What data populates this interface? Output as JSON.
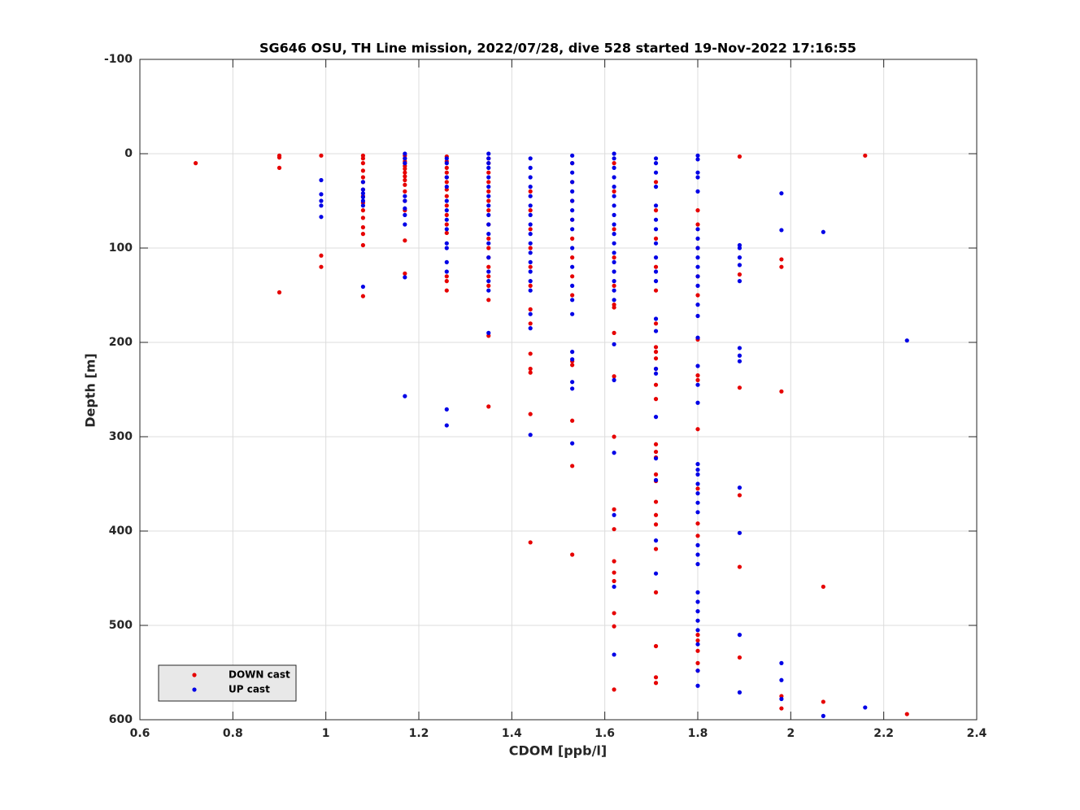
{
  "chart_data": {
    "type": "scatter",
    "title": "SG646 OSU, TH Line mission, 2022/07/28, dive 528 started 19-Nov-2022 17:16:55",
    "x_label": "CDOM [ppb/l]",
    "y_label": "Depth [m]",
    "xlim": [
      0.6,
      2.4
    ],
    "xticks": [
      0.6,
      0.8,
      1,
      1.2,
      1.4,
      1.6,
      1.8,
      2,
      2.2,
      2.4
    ],
    "ylim": [
      -100,
      600
    ],
    "yticks": [
      -100,
      0,
      100,
      200,
      300,
      400,
      500,
      600
    ],
    "y_reversed": true,
    "grid": true,
    "legend": "lower left",
    "series": [
      {
        "name": "DOWN cast",
        "color": "#e60000",
        "x": [
          0.72,
          0.9,
          0.9,
          0.9,
          0.9,
          0.99,
          0.99,
          0.99,
          1.08,
          1.08,
          1.08,
          1.08,
          1.08,
          1.08,
          1.08,
          1.08,
          1.08,
          1.08,
          1.08,
          1.08,
          1.08,
          1.08,
          1.08,
          1.17,
          1.17,
          1.17,
          1.17,
          1.17,
          1.17,
          1.17,
          1.17,
          1.17,
          1.17,
          1.17,
          1.17,
          1.17,
          1.17,
          1.17,
          1.26,
          1.26,
          1.26,
          1.26,
          1.26,
          1.26,
          1.26,
          1.26,
          1.26,
          1.26,
          1.26,
          1.26,
          1.26,
          1.26,
          1.26,
          1.35,
          1.35,
          1.35,
          1.35,
          1.35,
          1.35,
          1.35,
          1.35,
          1.35,
          1.35,
          1.35,
          1.35,
          1.35,
          1.35,
          1.35,
          1.35,
          1.35,
          1.44,
          1.44,
          1.44,
          1.44,
          1.44,
          1.44,
          1.44,
          1.44,
          1.44,
          1.44,
          1.44,
          1.44,
          1.44,
          1.53,
          1.53,
          1.53,
          1.53,
          1.53,
          1.53,
          1.53,
          1.53,
          1.53,
          1.53,
          1.53,
          1.53,
          1.53,
          1.62,
          1.62,
          1.62,
          1.62,
          1.62,
          1.62,
          1.62,
          1.62,
          1.62,
          1.62,
          1.62,
          1.62,
          1.62,
          1.62,
          1.62,
          1.62,
          1.62,
          1.62,
          1.71,
          1.71,
          1.71,
          1.71,
          1.71,
          1.71,
          1.71,
          1.71,
          1.71,
          1.71,
          1.71,
          1.71,
          1.71,
          1.71,
          1.71,
          1.71,
          1.71,
          1.71,
          1.71,
          1.71,
          1.71,
          1.71,
          1.71,
          1.71,
          1.71,
          1.8,
          1.8,
          1.8,
          1.8,
          1.8,
          1.8,
          1.8,
          1.8,
          1.8,
          1.8,
          1.8,
          1.8,
          1.8,
          1.8,
          1.8,
          1.8,
          1.8,
          1.89,
          1.89,
          1.89,
          1.89,
          1.89,
          1.89,
          1.98,
          1.98,
          1.98,
          1.98,
          1.98,
          2.07,
          2.07,
          2.16,
          2.25
        ],
        "values": [
          10,
          2,
          4,
          15,
          147,
          2,
          108,
          120,
          2,
          5,
          10,
          18,
          25,
          30,
          38,
          45,
          52,
          60,
          68,
          78,
          85,
          97,
          151,
          2,
          5,
          8,
          10,
          13,
          16,
          20,
          24,
          28,
          33,
          40,
          50,
          60,
          92,
          127,
          3,
          8,
          15,
          20,
          25,
          30,
          38,
          45,
          55,
          65,
          75,
          84,
          130,
          135,
          145,
          5,
          10,
          20,
          30,
          40,
          50,
          60,
          75,
          90,
          100,
          110,
          120,
          130,
          140,
          155,
          193,
          268,
          40,
          60,
          80,
          100,
          120,
          140,
          165,
          180,
          212,
          228,
          232,
          276,
          412,
          10,
          30,
          50,
          70,
          90,
          110,
          130,
          150,
          220,
          224,
          283,
          331,
          425,
          10,
          40,
          80,
          110,
          140,
          160,
          163,
          190,
          236,
          300,
          377,
          398,
          432,
          444,
          453,
          487,
          501,
          568,
          30,
          60,
          90,
          120,
          145,
          180,
          205,
          210,
          217,
          228,
          245,
          260,
          308,
          316,
          322,
          340,
          347,
          369,
          383,
          393,
          419,
          465,
          522,
          555,
          561,
          60,
          75,
          100,
          130,
          150,
          197,
          235,
          240,
          292,
          355,
          392,
          405,
          510,
          516,
          527,
          540,
          548,
          3,
          128,
          248,
          362,
          438,
          534,
          112,
          120,
          252,
          575,
          588,
          459,
          581,
          2,
          594
        ]
      },
      {
        "name": "UP cast",
        "color": "#0000e6",
        "x": [
          0.99,
          0.99,
          0.99,
          0.99,
          0.99,
          1.08,
          1.08,
          1.08,
          1.08,
          1.08,
          1.08,
          1.08,
          1.17,
          1.17,
          1.17,
          1.17,
          1.17,
          1.17,
          1.17,
          1.17,
          1.17,
          1.17,
          1.26,
          1.26,
          1.26,
          1.26,
          1.26,
          1.26,
          1.26,
          1.26,
          1.26,
          1.26,
          1.26,
          1.26,
          1.26,
          1.26,
          1.35,
          1.35,
          1.35,
          1.35,
          1.35,
          1.35,
          1.35,
          1.35,
          1.35,
          1.35,
          1.35,
          1.35,
          1.35,
          1.35,
          1.35,
          1.35,
          1.35,
          1.44,
          1.44,
          1.44,
          1.44,
          1.44,
          1.44,
          1.44,
          1.44,
          1.44,
          1.44,
          1.44,
          1.44,
          1.44,
          1.44,
          1.44,
          1.44,
          1.44,
          1.44,
          1.53,
          1.53,
          1.53,
          1.53,
          1.53,
          1.53,
          1.53,
          1.53,
          1.53,
          1.53,
          1.53,
          1.53,
          1.53,
          1.53,
          1.53,
          1.53,
          1.53,
          1.53,
          1.53,
          1.62,
          1.62,
          1.62,
          1.62,
          1.62,
          1.62,
          1.62,
          1.62,
          1.62,
          1.62,
          1.62,
          1.62,
          1.62,
          1.62,
          1.62,
          1.62,
          1.62,
          1.62,
          1.62,
          1.62,
          1.62,
          1.62,
          1.62,
          1.71,
          1.71,
          1.71,
          1.71,
          1.71,
          1.71,
          1.71,
          1.71,
          1.71,
          1.71,
          1.71,
          1.71,
          1.71,
          1.71,
          1.71,
          1.71,
          1.71,
          1.71,
          1.71,
          1.71,
          1.8,
          1.8,
          1.8,
          1.8,
          1.8,
          1.8,
          1.8,
          1.8,
          1.8,
          1.8,
          1.8,
          1.8,
          1.8,
          1.8,
          1.8,
          1.8,
          1.8,
          1.8,
          1.8,
          1.8,
          1.8,
          1.8,
          1.8,
          1.8,
          1.8,
          1.8,
          1.8,
          1.8,
          1.8,
          1.8,
          1.8,
          1.8,
          1.8,
          1.8,
          1.8,
          1.8,
          1.89,
          1.89,
          1.89,
          1.89,
          1.89,
          1.89,
          1.89,
          1.89,
          1.89,
          1.89,
          1.89,
          1.89,
          1.98,
          1.98,
          1.98,
          1.98,
          1.98,
          2.07,
          2.07,
          2.16,
          2.25
        ],
        "values": [
          28,
          43,
          50,
          55,
          67,
          30,
          38,
          42,
          46,
          50,
          55,
          141,
          0,
          5,
          10,
          45,
          50,
          58,
          65,
          75,
          131,
          257,
          5,
          10,
          25,
          35,
          50,
          60,
          70,
          80,
          95,
          100,
          115,
          125,
          271,
          288,
          0,
          5,
          10,
          15,
          25,
          35,
          45,
          55,
          65,
          75,
          85,
          95,
          110,
          125,
          135,
          145,
          190,
          5,
          15,
          25,
          35,
          45,
          55,
          65,
          75,
          85,
          95,
          105,
          115,
          125,
          135,
          145,
          170,
          185,
          298,
          2,
          10,
          20,
          30,
          40,
          50,
          60,
          70,
          80,
          100,
          120,
          140,
          155,
          170,
          210,
          218,
          242,
          249,
          307,
          0,
          5,
          15,
          25,
          35,
          45,
          55,
          65,
          75,
          85,
          95,
          105,
          115,
          125,
          135,
          145,
          155,
          202,
          240,
          317,
          383,
          459,
          531,
          5,
          10,
          20,
          35,
          55,
          70,
          80,
          95,
          110,
          125,
          135,
          175,
          188,
          228,
          233,
          279,
          323,
          346,
          410,
          445,
          2,
          6,
          20,
          25,
          40,
          80,
          90,
          100,
          110,
          120,
          130,
          140,
          160,
          172,
          195,
          225,
          245,
          264,
          329,
          335,
          340,
          350,
          360,
          370,
          380,
          415,
          425,
          435,
          465,
          475,
          485,
          495,
          505,
          520,
          548,
          564,
          97,
          100,
          110,
          118,
          135,
          206,
          214,
          220,
          354,
          402,
          510,
          571,
          42,
          81,
          540,
          558,
          578,
          83,
          596,
          587,
          198
        ]
      }
    ]
  }
}
